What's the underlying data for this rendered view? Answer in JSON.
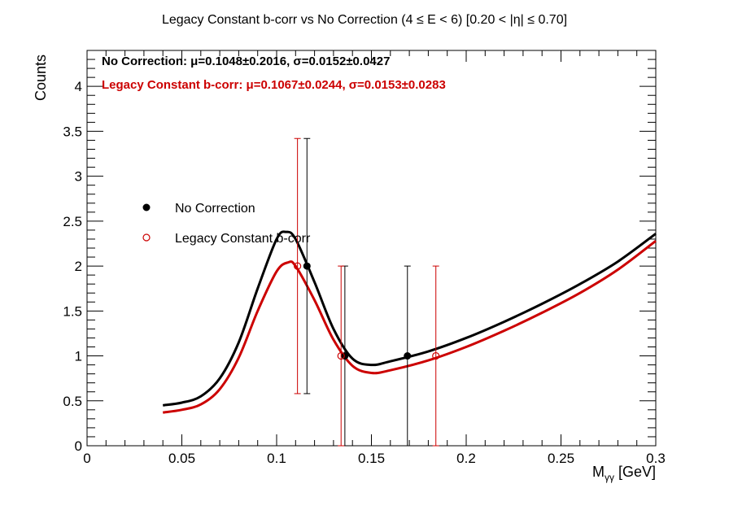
{
  "chart_data": {
    "type": "scatter",
    "title": "Legacy Constant b-corr vs No Correction   (4 ≤ E < 6)   [0.20 < |η| ≤ 0.70]",
    "xlabel": {
      "main": "M",
      "sub": "γγ",
      "unit": " [GeV]"
    },
    "ylabel": "Counts",
    "xlim": [
      0,
      0.3
    ],
    "ylim": [
      0,
      4.4
    ],
    "xticks": [
      0,
      0.05,
      0.1,
      0.15,
      0.2,
      0.25,
      0.3
    ],
    "xtick_labels": [
      "0",
      "0.05",
      "0.1",
      "0.15",
      "0.2",
      "0.25",
      "0.3"
    ],
    "yticks": [
      0,
      0.5,
      1,
      1.5,
      2,
      2.5,
      3,
      3.5,
      4
    ],
    "ytick_labels": [
      "0",
      "0.5",
      "1",
      "1.5",
      "2",
      "2.5",
      "3",
      "3.5",
      "4"
    ],
    "grid": false,
    "legend_position": "upper-left",
    "stats": [
      {
        "text": "No Correction: μ=0.1048±0.2016, σ=0.0152±0.0427",
        "color": "#000000"
      },
      {
        "text": "Legacy Constant b-corr: μ=0.1067±0.0244, σ=0.0153±0.0283",
        "color": "#cc0000"
      }
    ],
    "series": [
      {
        "name": "No Correction",
        "color": "#000000",
        "marker": "filled-circle",
        "points": [
          {
            "x": 0.116,
            "y": 2,
            "err_low": 1.42,
            "err_high": 1.42
          },
          {
            "x": 0.136,
            "y": 1,
            "err_low": 1,
            "err_high": 1
          },
          {
            "x": 0.169,
            "y": 1,
            "err_low": 1,
            "err_high": 1
          }
        ],
        "fit": [
          [
            0.04,
            0.45
          ],
          [
            0.05,
            0.48
          ],
          [
            0.06,
            0.55
          ],
          [
            0.07,
            0.75
          ],
          [
            0.08,
            1.15
          ],
          [
            0.09,
            1.75
          ],
          [
            0.1,
            2.3
          ],
          [
            0.105,
            2.38
          ],
          [
            0.11,
            2.3
          ],
          [
            0.12,
            1.82
          ],
          [
            0.13,
            1.3
          ],
          [
            0.14,
            0.97
          ],
          [
            0.15,
            0.9
          ],
          [
            0.16,
            0.94
          ],
          [
            0.18,
            1.05
          ],
          [
            0.2,
            1.2
          ],
          [
            0.22,
            1.38
          ],
          [
            0.24,
            1.58
          ],
          [
            0.26,
            1.8
          ],
          [
            0.28,
            2.05
          ],
          [
            0.3,
            2.36
          ]
        ]
      },
      {
        "name": "Legacy Constant b-corr",
        "color": "#cc0000",
        "marker": "open-circle",
        "points": [
          {
            "x": 0.111,
            "y": 2,
            "err_low": 1.42,
            "err_high": 1.42
          },
          {
            "x": 0.134,
            "y": 1,
            "err_low": 1,
            "err_high": 1
          },
          {
            "x": 0.184,
            "y": 1,
            "err_low": 1,
            "err_high": 1
          }
        ],
        "fit": [
          [
            0.04,
            0.37
          ],
          [
            0.05,
            0.4
          ],
          [
            0.06,
            0.46
          ],
          [
            0.07,
            0.63
          ],
          [
            0.08,
            0.98
          ],
          [
            0.09,
            1.5
          ],
          [
            0.1,
            1.94
          ],
          [
            0.106,
            2.04
          ],
          [
            0.11,
            2.0
          ],
          [
            0.12,
            1.62
          ],
          [
            0.13,
            1.18
          ],
          [
            0.14,
            0.89
          ],
          [
            0.15,
            0.81
          ],
          [
            0.16,
            0.84
          ],
          [
            0.18,
            0.95
          ],
          [
            0.2,
            1.1
          ],
          [
            0.22,
            1.28
          ],
          [
            0.24,
            1.48
          ],
          [
            0.26,
            1.7
          ],
          [
            0.28,
            1.96
          ],
          [
            0.3,
            2.28
          ]
        ]
      }
    ]
  }
}
